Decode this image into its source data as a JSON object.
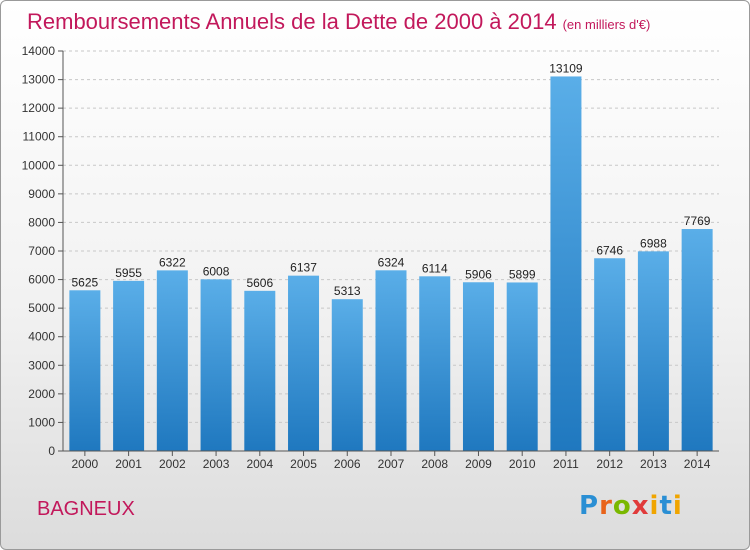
{
  "title": "Remboursements Annuels de la Dette de 2000 à 2014",
  "unit_label": "(en milliers d'€)",
  "city": "BAGNEUX",
  "logo": "Proxiti",
  "colors": {
    "title": "#c2185b",
    "bar_top": "#5aaee8",
    "bar_bottom": "#1f78bf"
  },
  "chart_data": {
    "type": "bar",
    "title": "Remboursements Annuels de la Dette de 2000 à 2014",
    "categories": [
      "2000",
      "2001",
      "2002",
      "2003",
      "2004",
      "2005",
      "2006",
      "2007",
      "2008",
      "2009",
      "2010",
      "2011",
      "2012",
      "2013",
      "2014"
    ],
    "values": [
      5625,
      5955,
      6322,
      6008,
      5606,
      6137,
      5313,
      6324,
      6114,
      5906,
      5899,
      13109,
      6746,
      6988,
      7769
    ],
    "xlabel": "",
    "ylabel": "",
    "ylim": [
      0,
      14000
    ],
    "yticks": [
      0,
      1000,
      2000,
      3000,
      4000,
      5000,
      6000,
      7000,
      8000,
      9000,
      10000,
      11000,
      12000,
      13000,
      14000
    ],
    "grid": true,
    "data_labels": true
  }
}
